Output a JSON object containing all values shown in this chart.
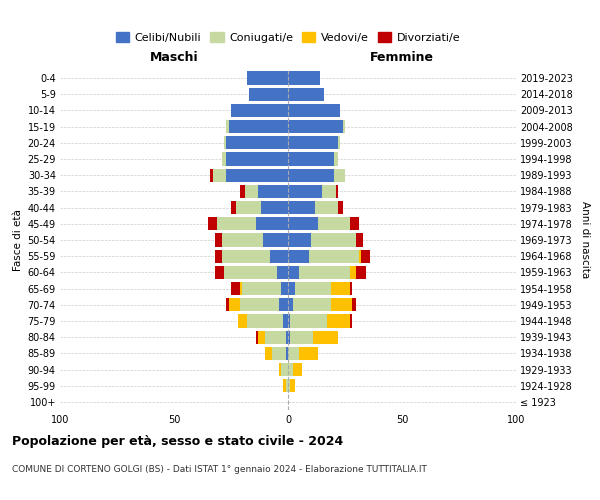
{
  "age_groups": [
    "100+",
    "95-99",
    "90-94",
    "85-89",
    "80-84",
    "75-79",
    "70-74",
    "65-69",
    "60-64",
    "55-59",
    "50-54",
    "45-49",
    "40-44",
    "35-39",
    "30-34",
    "25-29",
    "20-24",
    "15-19",
    "10-14",
    "5-9",
    "0-4"
  ],
  "birth_years": [
    "≤ 1923",
    "1924-1928",
    "1929-1933",
    "1934-1938",
    "1939-1943",
    "1944-1948",
    "1949-1953",
    "1954-1958",
    "1959-1963",
    "1964-1968",
    "1969-1973",
    "1974-1978",
    "1979-1983",
    "1984-1988",
    "1989-1993",
    "1994-1998",
    "1999-2003",
    "2004-2008",
    "2009-2013",
    "2014-2018",
    "2019-2023"
  ],
  "colors": {
    "celibi": "#4472c4",
    "coniugati": "#c5d9a0",
    "vedovi": "#ffc000",
    "divorziati": "#c00000"
  },
  "males": {
    "celibi": [
      0,
      0,
      0,
      1,
      1,
      2,
      4,
      3,
      5,
      8,
      11,
      14,
      12,
      13,
      27,
      27,
      27,
      26,
      25,
      17,
      18
    ],
    "coniugati": [
      0,
      1,
      3,
      6,
      9,
      16,
      17,
      17,
      23,
      21,
      18,
      17,
      11,
      6,
      6,
      2,
      1,
      1,
      0,
      0,
      0
    ],
    "vedovi": [
      0,
      1,
      1,
      3,
      3,
      4,
      5,
      1,
      0,
      0,
      0,
      0,
      0,
      0,
      0,
      0,
      0,
      0,
      0,
      0,
      0
    ],
    "divorziati": [
      0,
      0,
      0,
      0,
      1,
      0,
      1,
      4,
      4,
      3,
      3,
      4,
      2,
      2,
      1,
      0,
      0,
      0,
      0,
      0,
      0
    ]
  },
  "females": {
    "celibi": [
      0,
      0,
      0,
      0,
      1,
      1,
      2,
      3,
      5,
      9,
      10,
      13,
      12,
      15,
      20,
      20,
      22,
      24,
      23,
      16,
      14
    ],
    "coniugati": [
      0,
      1,
      2,
      5,
      10,
      16,
      17,
      16,
      22,
      22,
      20,
      14,
      10,
      6,
      5,
      2,
      1,
      1,
      0,
      0,
      0
    ],
    "vedovi": [
      0,
      2,
      4,
      8,
      11,
      10,
      9,
      8,
      3,
      1,
      0,
      0,
      0,
      0,
      0,
      0,
      0,
      0,
      0,
      0,
      0
    ],
    "divorziati": [
      0,
      0,
      0,
      0,
      0,
      1,
      2,
      1,
      4,
      4,
      3,
      4,
      2,
      1,
      0,
      0,
      0,
      0,
      0,
      0,
      0
    ]
  },
  "title_bold": "Popolazione per età, sesso e stato civile - 2024",
  "subtitle": "COMUNE DI CORTENO GOLGI (BS) - Dati ISTAT 1° gennaio 2024 - Elaborazione TUTTITALIA.IT",
  "xlabel_left": "Maschi",
  "xlabel_right": "Femmine",
  "ylabel_left": "Fasce di età",
  "ylabel_right": "Anni di nascita",
  "xlim": 100,
  "legend_labels": [
    "Celibi/Nubili",
    "Coniugati/e",
    "Vedovi/e",
    "Divorziati/e"
  ],
  "bg_color": "#ffffff",
  "grid_color": "#cccccc"
}
